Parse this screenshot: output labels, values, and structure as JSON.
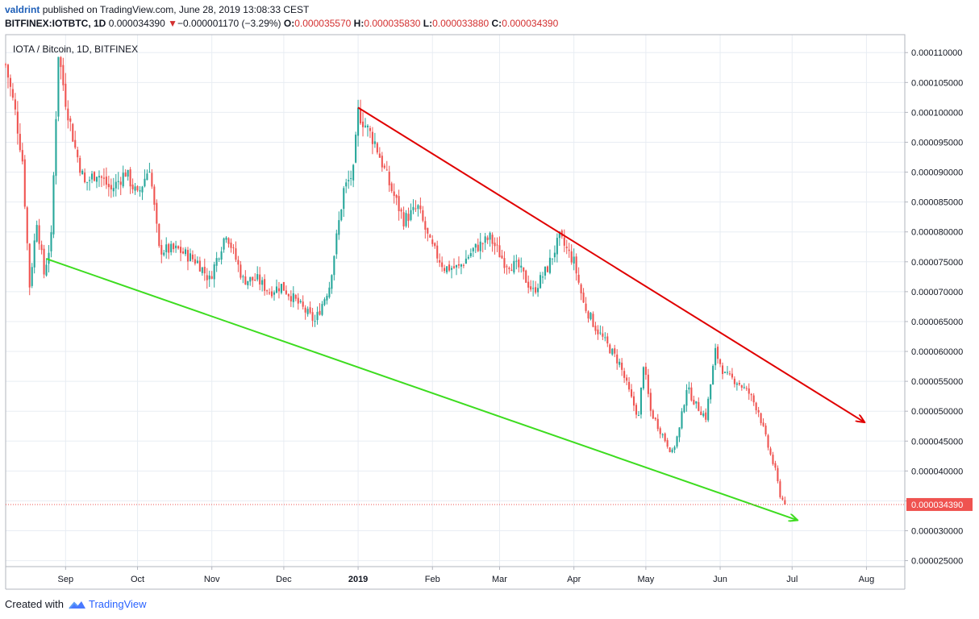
{
  "header": {
    "author": "valdrint",
    "published": "published on TradingView.com, June 28, 2019 13:08:33 CEST",
    "symbol": "BITFINEX:IOTBTC, 1D",
    "price": "0.000034390",
    "change_arrow": "▼",
    "change": "−0.000001170 (−3.29%)",
    "ohlc": [
      {
        "label": "O:",
        "value": "0.000035570"
      },
      {
        "label": "H:",
        "value": "0.000035830"
      },
      {
        "label": "L:",
        "value": "0.000033880"
      },
      {
        "label": "C:",
        "value": "0.000034390"
      }
    ]
  },
  "footer": {
    "created_with": "Created with",
    "brand": "TradingView",
    "logo_icon": "tradingview-logo-icon"
  },
  "colors": {
    "up": "#26a69a",
    "down": "#ef5350",
    "resistance": "#e00000",
    "support": "#3ddc1f",
    "grid": "#e8edf3",
    "price_label_bg": "#ef5350"
  },
  "chart_data": {
    "type": "candlestick",
    "title": "IOTA / Bitcoin, 1D, BITFINEX",
    "ylim": [
      2.4e-05,
      0.000113
    ],
    "y_ticks": [
      "0.000110000",
      "0.000105000",
      "0.000100000",
      "0.000095000",
      "0.000090000",
      "0.000085000",
      "0.000080000",
      "0.000075000",
      "0.000070000",
      "0.000065000",
      "0.000060000",
      "0.000055000",
      "0.000050000",
      "0.000045000",
      "0.000040000",
      "0.000035000",
      "0.000030000",
      "0.000025000"
    ],
    "y_tick_values": [
      0.00011,
      0.000105,
      0.0001,
      9.5e-05,
      9e-05,
      8.5e-05,
      8e-05,
      7.5e-05,
      7e-05,
      6.5e-05,
      6e-05,
      5.5e-05,
      5e-05,
      4.5e-05,
      4e-05,
      3.5e-05,
      3e-05,
      2.5e-05
    ],
    "x_range": [
      "2018-08-07",
      "2019-08-17"
    ],
    "x_ticks": [
      {
        "label": "Sep",
        "date": "2018-09-01",
        "bold": false
      },
      {
        "label": "Oct",
        "date": "2018-10-01",
        "bold": false
      },
      {
        "label": "Nov",
        "date": "2018-11-01",
        "bold": false
      },
      {
        "label": "Dec",
        "date": "2018-12-01",
        "bold": false
      },
      {
        "label": "2019",
        "date": "2019-01-01",
        "bold": true
      },
      {
        "label": "Feb",
        "date": "2019-02-01",
        "bold": false
      },
      {
        "label": "Mar",
        "date": "2019-03-01",
        "bold": false
      },
      {
        "label": "Apr",
        "date": "2019-04-01",
        "bold": false
      },
      {
        "label": "May",
        "date": "2019-05-01",
        "bold": false
      },
      {
        "label": "Jun",
        "date": "2019-06-01",
        "bold": false
      },
      {
        "label": "Jul",
        "date": "2019-07-01",
        "bold": false
      },
      {
        "label": "Aug",
        "date": "2019-08-01",
        "bold": false
      }
    ],
    "last_price": 3.439e-05,
    "last_price_label": "0.000034390",
    "close_path": [
      [
        "2018-08-07",
        0.000108
      ],
      [
        "2018-08-11",
        0.0001
      ],
      [
        "2018-08-14",
        9.2e-05
      ],
      [
        "2018-08-17",
        7.1e-05
      ],
      [
        "2018-08-20",
        8.2e-05
      ],
      [
        "2018-08-23",
        7.3e-05
      ],
      [
        "2018-08-26",
        7.9e-05
      ],
      [
        "2018-08-29",
        0.00011
      ],
      [
        "2018-09-01",
        0.000102
      ],
      [
        "2018-09-05",
        9.4e-05
      ],
      [
        "2018-09-09",
        8.8e-05
      ],
      [
        "2018-09-14",
        9e-05
      ],
      [
        "2018-09-20",
        8.7e-05
      ],
      [
        "2018-09-26",
        9e-05
      ],
      [
        "2018-10-01",
        8.6e-05
      ],
      [
        "2018-10-06",
        9.1e-05
      ],
      [
        "2018-10-10",
        7.7e-05
      ],
      [
        "2018-10-18",
        7.7e-05
      ],
      [
        "2018-10-26",
        7.5e-05
      ],
      [
        "2018-10-31",
        7.2e-05
      ],
      [
        "2018-11-07",
        8e-05
      ],
      [
        "2018-11-14",
        7.2e-05
      ],
      [
        "2018-11-20",
        7.2e-05
      ],
      [
        "2018-11-25",
        7e-05
      ],
      [
        "2018-11-30",
        7.1e-05
      ],
      [
        "2018-12-07",
        6.8e-05
      ],
      [
        "2018-12-14",
        6.5e-05
      ],
      [
        "2018-12-20",
        7.1e-05
      ],
      [
        "2018-12-26",
        8.7e-05
      ],
      [
        "2018-12-30",
        9e-05
      ],
      [
        "2019-01-01",
        0.0001
      ],
      [
        "2019-01-08",
        9.5e-05
      ],
      [
        "2019-01-14",
        8.8e-05
      ],
      [
        "2019-01-20",
        8.2e-05
      ],
      [
        "2019-01-26",
        8.4e-05
      ],
      [
        "2019-01-31",
        7.8e-05
      ],
      [
        "2019-02-06",
        7.4e-05
      ],
      [
        "2019-02-12",
        7.4e-05
      ],
      [
        "2019-02-18",
        7.7e-05
      ],
      [
        "2019-02-25",
        7.9e-05
      ],
      [
        "2019-03-03",
        7.5e-05
      ],
      [
        "2019-03-09",
        7.4e-05
      ],
      [
        "2019-03-15",
        7e-05
      ],
      [
        "2019-03-21",
        7.4e-05
      ],
      [
        "2019-03-26",
        7.9e-05
      ],
      [
        "2019-04-01",
        7.5e-05
      ],
      [
        "2019-04-05",
        6.8e-05
      ],
      [
        "2019-04-10",
        6.4e-05
      ],
      [
        "2019-04-15",
        6.1e-05
      ],
      [
        "2019-04-20",
        5.8e-05
      ],
      [
        "2019-04-25",
        5.2e-05
      ],
      [
        "2019-04-28",
        4.9e-05
      ],
      [
        "2019-04-30",
        5.8e-05
      ],
      [
        "2019-05-03",
        5e-05
      ],
      [
        "2019-05-08",
        4.6e-05
      ],
      [
        "2019-05-12",
        4.3e-05
      ],
      [
        "2019-05-15",
        4.7e-05
      ],
      [
        "2019-05-18",
        5.4e-05
      ],
      [
        "2019-05-22",
        5.1e-05
      ],
      [
        "2019-05-26",
        4.9e-05
      ],
      [
        "2019-05-30",
        6e-05
      ],
      [
        "2019-06-03",
        5.6e-05
      ],
      [
        "2019-06-08",
        5.5e-05
      ],
      [
        "2019-06-13",
        5.3e-05
      ],
      [
        "2019-06-17",
        5e-05
      ],
      [
        "2019-06-21",
        4.4e-05
      ],
      [
        "2019-06-24",
        4e-05
      ],
      [
        "2019-06-26",
        3.6e-05
      ],
      [
        "2019-06-28",
        3.439e-05
      ]
    ],
    "trendlines": [
      {
        "name": "resistance",
        "color": "#e00000",
        "from": [
          "2019-01-01",
          0.0001008
        ],
        "to": [
          "2019-07-31",
          4.82e-05
        ]
      },
      {
        "name": "support",
        "color": "#3ddc1f",
        "from": [
          "2018-08-24",
          7.55e-05
        ],
        "to": [
          "2019-07-03",
          3.18e-05
        ]
      }
    ],
    "grid": true,
    "legend": "top-left"
  }
}
